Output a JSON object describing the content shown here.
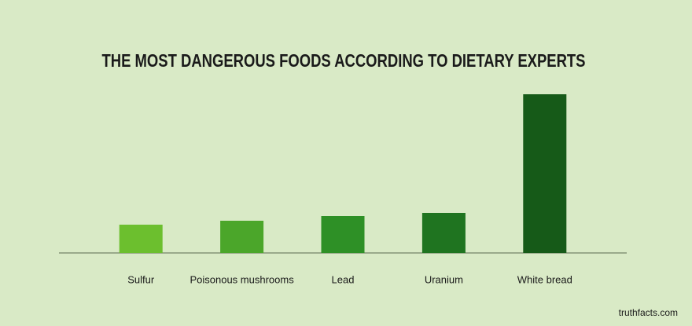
{
  "chart_data": {
    "type": "bar",
    "title": "THE MOST DANGEROUS FOODS ACCORDING TO DIETARY EXPERTS",
    "categories": [
      "Sulfur",
      "Poisonous mushrooms",
      "Lead",
      "Uranium",
      "White bread"
    ],
    "values": [
      36,
      41,
      47,
      51,
      202
    ],
    "colors": [
      "#6cbf2e",
      "#4ba62a",
      "#2e9026",
      "#1f7420",
      "#165a18"
    ],
    "source": "truthfacts.com"
  }
}
